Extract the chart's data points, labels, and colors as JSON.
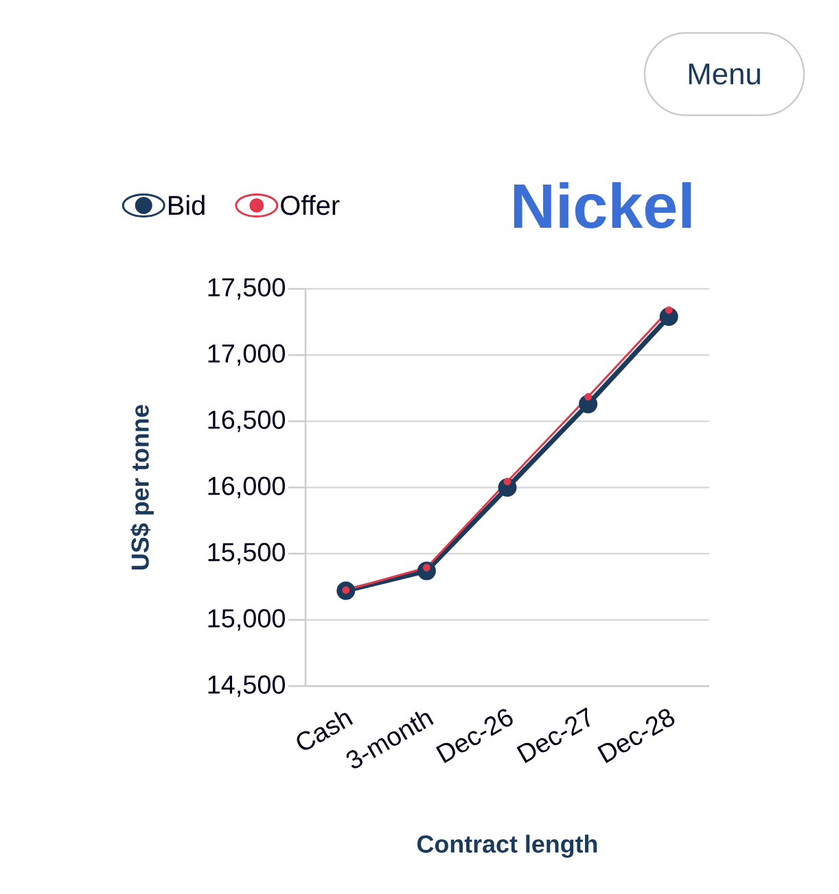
{
  "chart_data": {
    "type": "line",
    "title": "Nickel",
    "ylabel": "US$ per tonne",
    "xlabel": "Contract length",
    "categories": [
      "Cash",
      "3-month",
      "Dec-26",
      "Dec-27",
      "Dec-28"
    ],
    "series": [
      {
        "name": "Bid",
        "color": "#1b3a5c",
        "values": [
          15220,
          15370,
          16000,
          16630,
          17290
        ]
      },
      {
        "name": "Offer",
        "color": "#e03a4e",
        "values": [
          15225,
          15395,
          16045,
          16685,
          17340
        ]
      }
    ],
    "ylim": [
      14500,
      17500
    ],
    "yticks": [
      {
        "value": 14500,
        "label": "14,500"
      },
      {
        "value": 15000,
        "label": "15,000"
      },
      {
        "value": 15500,
        "label": "15,500"
      },
      {
        "value": 16000,
        "label": "16,000"
      },
      {
        "value": 16500,
        "label": "16,500"
      },
      {
        "value": 17000,
        "label": "17,000"
      },
      {
        "value": 17500,
        "label": "17,500"
      }
    ],
    "grid": "y",
    "legend": "top left",
    "marker": "circle",
    "line_style": "solid",
    "annotations": [
      "Menu"
    ]
  }
}
